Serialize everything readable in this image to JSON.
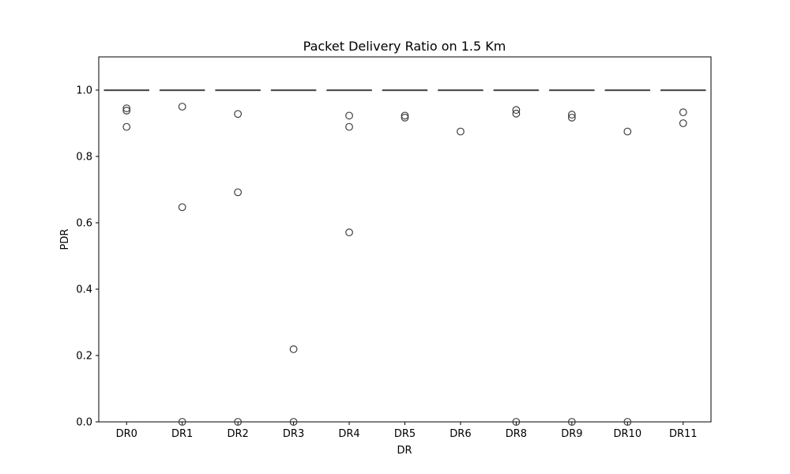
{
  "chart_data": {
    "type": "box",
    "title": "Packet Delivery Ratio on 1.5 Km",
    "xlabel": "DR",
    "ylabel": "PDR",
    "ylim": [
      0,
      1.1
    ],
    "yticks": [
      0.0,
      0.2,
      0.4,
      0.6,
      0.8,
      1.0
    ],
    "ytick_labels": [
      "0.0",
      "0.2",
      "0.4",
      "0.6",
      "0.8",
      "1.0"
    ],
    "categories": [
      "DR0",
      "DR1",
      "DR2",
      "DR3",
      "DR4",
      "DR5",
      "DR6",
      "DR8",
      "DR9",
      "DR10",
      "DR11"
    ],
    "boxes": [
      {
        "category": "DR0",
        "q1": 1.0,
        "median": 1.0,
        "q3": 1.0,
        "whisker_low": 1.0,
        "whisker_high": 1.0,
        "outliers": [
          0.945,
          0.938,
          0.889
        ]
      },
      {
        "category": "DR1",
        "q1": 1.0,
        "median": 1.0,
        "q3": 1.0,
        "whisker_low": 1.0,
        "whisker_high": 1.0,
        "outliers": [
          0.95,
          0.647,
          0.0
        ]
      },
      {
        "category": "DR2",
        "q1": 1.0,
        "median": 1.0,
        "q3": 1.0,
        "whisker_low": 1.0,
        "whisker_high": 1.0,
        "outliers": [
          0.928,
          0.692,
          0.0
        ]
      },
      {
        "category": "DR3",
        "q1": 1.0,
        "median": 1.0,
        "q3": 1.0,
        "whisker_low": 1.0,
        "whisker_high": 1.0,
        "outliers": [
          0.219,
          0.0
        ]
      },
      {
        "category": "DR4",
        "q1": 1.0,
        "median": 1.0,
        "q3": 1.0,
        "whisker_low": 1.0,
        "whisker_high": 1.0,
        "outliers": [
          0.923,
          0.889,
          0.571
        ]
      },
      {
        "category": "DR5",
        "q1": 1.0,
        "median": 1.0,
        "q3": 1.0,
        "whisker_low": 1.0,
        "whisker_high": 1.0,
        "outliers": [
          0.923,
          0.917
        ]
      },
      {
        "category": "DR6",
        "q1": 1.0,
        "median": 1.0,
        "q3": 1.0,
        "whisker_low": 1.0,
        "whisker_high": 1.0,
        "outliers": [
          0.875
        ]
      },
      {
        "category": "DR8",
        "q1": 1.0,
        "median": 1.0,
        "q3": 1.0,
        "whisker_low": 1.0,
        "whisker_high": 1.0,
        "outliers": [
          0.94,
          0.929,
          0.0
        ]
      },
      {
        "category": "DR9",
        "q1": 1.0,
        "median": 1.0,
        "q3": 1.0,
        "whisker_low": 1.0,
        "whisker_high": 1.0,
        "outliers": [
          0.926,
          0.917,
          0.0
        ]
      },
      {
        "category": "DR10",
        "q1": 1.0,
        "median": 1.0,
        "q3": 1.0,
        "whisker_low": 1.0,
        "whisker_high": 1.0,
        "outliers": [
          0.875,
          0.0
        ]
      },
      {
        "category": "DR11",
        "q1": 1.0,
        "median": 1.0,
        "q3": 1.0,
        "whisker_low": 1.0,
        "whisker_high": 1.0,
        "outliers": [
          0.933,
          0.9
        ]
      }
    ],
    "grid": false,
    "legend": "none",
    "colors": {
      "box_line": "#3f3f3f",
      "outlier_edge": "#3f3f3f",
      "axes": "#000000"
    }
  }
}
